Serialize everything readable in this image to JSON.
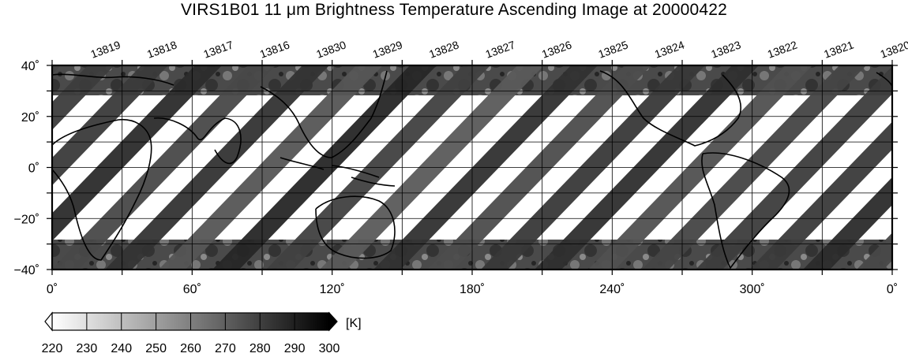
{
  "title": "VIRS1B01 11 μm Brightness Temperature Ascending Image at 20000422",
  "orbits": [
    "13819",
    "13818",
    "13817",
    "13816",
    "13830",
    "13829",
    "13828",
    "13827",
    "13826",
    "13825",
    "13824",
    "13823",
    "13822",
    "13821",
    "13820"
  ],
  "lat_ticks": [
    {
      "value": 40,
      "label": "40˚"
    },
    {
      "value": 20,
      "label": "20˚"
    },
    {
      "value": 0,
      "label": "0˚"
    },
    {
      "value": -20,
      "label": "−20˚"
    },
    {
      "value": -40,
      "label": "−40˚"
    }
  ],
  "lon_ticks": [
    {
      "value": 0,
      "label": "0˚"
    },
    {
      "value": 60,
      "label": "60˚"
    },
    {
      "value": 120,
      "label": "120˚"
    },
    {
      "value": 180,
      "label": "180˚"
    },
    {
      "value": 240,
      "label": "240˚"
    },
    {
      "value": 300,
      "label": "300˚"
    },
    {
      "value": 360,
      "label": "0˚"
    }
  ],
  "lon_range": [
    0,
    360
  ],
  "lat_range": [
    -40,
    40
  ],
  "colorbar": {
    "unit": "[K]",
    "ticks": [
      "220",
      "230",
      "240",
      "250",
      "260",
      "270",
      "280",
      "290",
      "300"
    ],
    "min": 220,
    "max": 300,
    "color_low": "#ffffff",
    "color_high": "#000000"
  }
}
